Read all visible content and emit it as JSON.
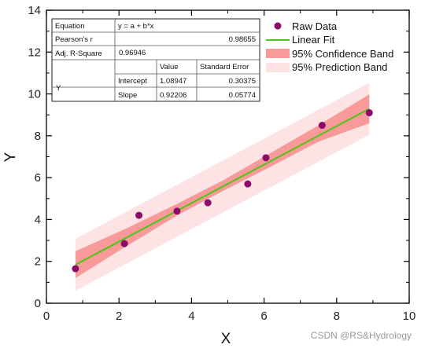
{
  "chart_data": {
    "type": "scatter",
    "xlabel": "X",
    "ylabel": "Y",
    "xlim": [
      0,
      10
    ],
    "ylim": [
      0,
      14
    ],
    "xticks": [
      "0",
      "2",
      "4",
      "6",
      "8",
      "10"
    ],
    "yticks": [
      "0",
      "2",
      "4",
      "6",
      "8",
      "10",
      "12",
      "14"
    ],
    "grid": false,
    "legend_position": "top-right",
    "series": [
      {
        "name": "Raw Data",
        "kind": "scatter",
        "color": "#8b0a6b",
        "x": [
          0.8,
          2.15,
          2.55,
          3.6,
          4.45,
          5.55,
          6.05,
          7.6,
          8.9
        ],
        "y": [
          1.65,
          2.85,
          4.2,
          4.4,
          4.8,
          5.7,
          6.95,
          8.5,
          9.1
        ]
      },
      {
        "name": "Linear Fit",
        "kind": "line",
        "color": "#4ec415",
        "x": [
          0.8,
          8.9
        ],
        "y": [
          1.84,
          9.29
        ]
      },
      {
        "name": "95% Confidence Band",
        "kind": "band",
        "color": "#f99a9a",
        "x": [
          0.8,
          2.2,
          3.6,
          4.85,
          6.1,
          7.5,
          8.9
        ],
        "lower": [
          1.2,
          2.72,
          4.19,
          5.35,
          6.45,
          7.72,
          8.6
        ],
        "upper": [
          2.48,
          3.57,
          4.75,
          5.85,
          7.1,
          8.5,
          9.98
        ]
      },
      {
        "name": "95% Prediction Band",
        "kind": "band",
        "color": "#fde3e3",
        "x": [
          0.8,
          8.9
        ],
        "lower": [
          0.6,
          8.05
        ],
        "upper": [
          3.08,
          10.53
        ]
      }
    ],
    "stats_table": {
      "equation_label": "Equation",
      "equation": "y = a + b*x",
      "pearson_label": "Pearson's r",
      "pearson": "0.98655",
      "adj_r2_label": "Adj. R-Square",
      "adj_r2": "0.96946",
      "value_header": "Value",
      "se_header": "Standard Error",
      "row_label": "Y",
      "intercept_label": "Intercept",
      "intercept_value": "1.08947",
      "intercept_se": "0.30375",
      "slope_label": "Slope",
      "slope_value": "0.92206",
      "slope_se": "0.05774"
    }
  },
  "watermark": "CSDN @RS&Hydrology"
}
